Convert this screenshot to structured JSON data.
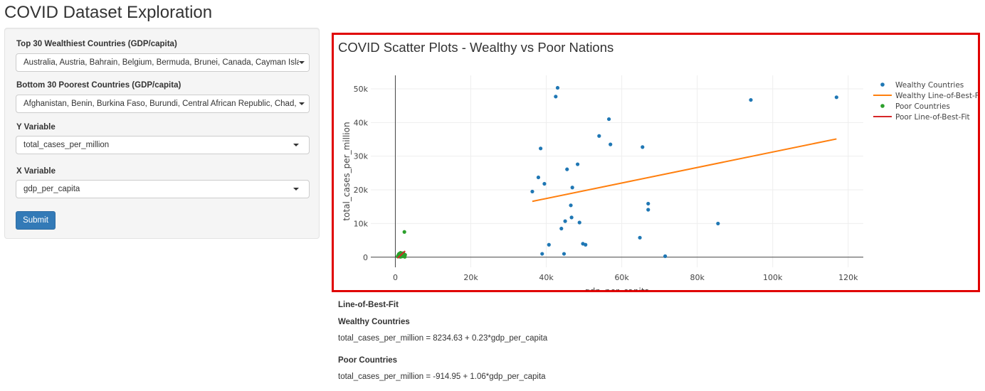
{
  "app": {
    "title": "COVID Dataset Exploration"
  },
  "sidebar": {
    "wealthy": {
      "label": "Top 30 Wealthiest Countries (GDP/capita)",
      "value": "Australia, Austria, Bahrain, Belgium, Bermuda, Brunei, Canada, Cayman Islands"
    },
    "poor": {
      "label": "Bottom 30 Poorest Countries (GDP/capita)",
      "value": "Afghanistan, Benin, Burkina Faso, Burundi, Central African Republic, Chad, Comoros"
    },
    "y_var": {
      "label": "Y Variable",
      "value": "total_cases_per_million"
    },
    "x_var": {
      "label": "X Variable",
      "value": "gdp_per_capita"
    },
    "submit_label": "Submit"
  },
  "plot": {
    "title": "COVID Scatter Plots - Wealthy vs Poor Nations"
  },
  "chart_data": {
    "type": "scatter",
    "title": "COVID Scatter Plots - Wealthy vs Poor Nations",
    "xlabel": "gdp_per_capita",
    "ylabel": "total_cases_per_million",
    "xlim": [
      -6500,
      124000
    ],
    "ylim": [
      -3000,
      54000
    ],
    "x_ticks": [
      0,
      20000,
      40000,
      60000,
      80000,
      100000,
      120000
    ],
    "x_tick_labels": [
      "0",
      "20k",
      "40k",
      "60k",
      "80k",
      "100k",
      "120k"
    ],
    "y_ticks": [
      0,
      10000,
      20000,
      30000,
      40000,
      50000
    ],
    "y_tick_labels": [
      "0",
      "10k",
      "20k",
      "30k",
      "40k",
      "50k"
    ],
    "grid": true,
    "legend_position": "right",
    "series": [
      {
        "name": "Wealthy Countries",
        "mode": "markers",
        "color": "#1f77b4",
        "points": [
          {
            "x": 43000,
            "y": 50300
          },
          {
            "x": 42500,
            "y": 47700
          },
          {
            "x": 94200,
            "y": 46700
          },
          {
            "x": 116900,
            "y": 47500
          },
          {
            "x": 56600,
            "y": 41000
          },
          {
            "x": 54000,
            "y": 36000
          },
          {
            "x": 57000,
            "y": 33500
          },
          {
            "x": 38500,
            "y": 32300
          },
          {
            "x": 65500,
            "y": 32700
          },
          {
            "x": 48300,
            "y": 27600
          },
          {
            "x": 45500,
            "y": 26100
          },
          {
            "x": 37900,
            "y": 23700
          },
          {
            "x": 39500,
            "y": 21800
          },
          {
            "x": 46900,
            "y": 20700
          },
          {
            "x": 36300,
            "y": 19500
          },
          {
            "x": 67000,
            "y": 15900
          },
          {
            "x": 46500,
            "y": 15400
          },
          {
            "x": 67000,
            "y": 14100
          },
          {
            "x": 46700,
            "y": 11800
          },
          {
            "x": 45000,
            "y": 10700
          },
          {
            "x": 48800,
            "y": 10300
          },
          {
            "x": 85500,
            "y": 10000
          },
          {
            "x": 44000,
            "y": 8500
          },
          {
            "x": 64800,
            "y": 5800
          },
          {
            "x": 49700,
            "y": 4000
          },
          {
            "x": 50400,
            "y": 3700
          },
          {
            "x": 40700,
            "y": 3700
          },
          {
            "x": 38900,
            "y": 1000
          },
          {
            "x": 44700,
            "y": 1000
          },
          {
            "x": 71500,
            "y": 300
          }
        ]
      },
      {
        "name": "Wealthy Line-of-Best-Fit",
        "mode": "lines",
        "color": "#ff7f0e",
        "points": [
          {
            "x": 36300,
            "y": 16583.6
          },
          {
            "x": 116900,
            "y": 35121.6
          }
        ]
      },
      {
        "name": "Poor Countries",
        "mode": "markers",
        "color": "#2ca02c",
        "points": [
          {
            "x": 600,
            "y": 200
          },
          {
            "x": 750,
            "y": 500
          },
          {
            "x": 900,
            "y": 900
          },
          {
            "x": 1000,
            "y": 300
          },
          {
            "x": 1100,
            "y": 1100
          },
          {
            "x": 1200,
            "y": 700
          },
          {
            "x": 1300,
            "y": 100
          },
          {
            "x": 1400,
            "y": 1300
          },
          {
            "x": 1500,
            "y": 400
          },
          {
            "x": 1600,
            "y": 800
          },
          {
            "x": 1700,
            "y": 200
          },
          {
            "x": 1800,
            "y": 1000
          },
          {
            "x": 1900,
            "y": 600
          },
          {
            "x": 2000,
            "y": 300
          },
          {
            "x": 2100,
            "y": 1200
          },
          {
            "x": 2200,
            "y": 500
          },
          {
            "x": 2300,
            "y": 900
          },
          {
            "x": 2400,
            "y": 7500
          },
          {
            "x": 2500,
            "y": 100
          },
          {
            "x": 2600,
            "y": 700
          }
        ]
      },
      {
        "name": "Poor Line-of-Best-Fit",
        "mode": "lines",
        "color": "#d62728",
        "points": [
          {
            "x": 600,
            "y": -278.95
          },
          {
            "x": 2600,
            "y": 1841.05
          }
        ]
      }
    ]
  },
  "results": {
    "heading": "Line-of-Best-Fit",
    "wealthy_heading": "Wealthy Countries",
    "wealthy_eq": "total_cases_per_million = 8234.63 + 0.23*gdp_per_capita",
    "poor_heading": "Poor Countries",
    "poor_eq": "total_cases_per_million = -914.95 + 1.06*gdp_per_capita"
  }
}
